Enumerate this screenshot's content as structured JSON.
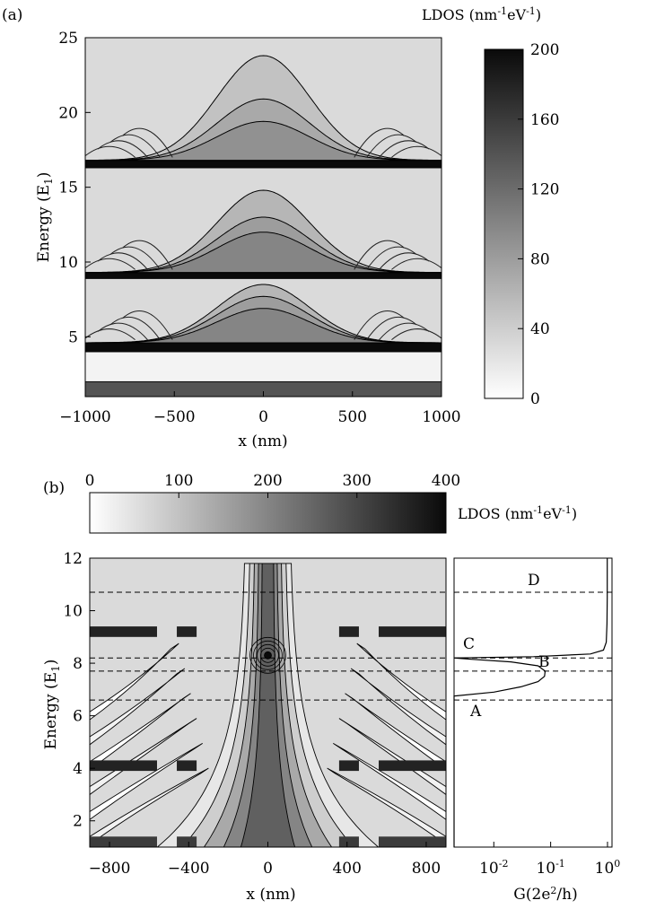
{
  "chart_data": [
    {
      "type": "heatmap",
      "panel_label": "(a)",
      "xlabel": "x (nm)",
      "ylabel": "Energy (E",
      "ylabel_sub": "1",
      "ylabel_end": ")",
      "x_ticks": [
        "−1000",
        "−500",
        "0",
        "500",
        "1000"
      ],
      "x_tick_values": [
        -1000,
        -500,
        0,
        500,
        1000
      ],
      "xlim": [
        -1000,
        1000
      ],
      "y_ticks": [
        "5",
        "10",
        "15",
        "20",
        "25"
      ],
      "y_tick_values": [
        5,
        10,
        15,
        20,
        25
      ],
      "ylim": [
        1,
        25
      ],
      "colorbar": {
        "title": "LDOS (nm",
        "title_sup1": "-1",
        "title_mid": "eV",
        "title_sup2": "-1",
        "title_end": ")",
        "ticks": [
          "0",
          "40",
          "80",
          "120",
          "160",
          "200"
        ],
        "tick_values": [
          0,
          40,
          80,
          120,
          160,
          200
        ],
        "range": [
          0,
          200
        ],
        "orientation": "vertical"
      },
      "bands": [
        {
          "e_min": 1.0,
          "e_max": 2.0,
          "level": 140
        },
        {
          "e_min": 2.0,
          "e_max": 4.0,
          "level": 10
        },
        {
          "e_min": 4.0,
          "e_max": 4.6,
          "level": 200
        },
        {
          "e_min": 4.6,
          "e_max": 8.9,
          "level": 30
        },
        {
          "e_min": 8.9,
          "e_max": 9.3,
          "level": 200
        },
        {
          "e_min": 9.3,
          "e_max": 16.3,
          "level": 30
        },
        {
          "e_min": 16.3,
          "e_max": 16.8,
          "level": 200
        },
        {
          "e_min": 16.8,
          "e_max": 25.0,
          "level": 30
        }
      ],
      "bumps": [
        {
          "e_base": 4.6,
          "contours": [
            {
              "e_peak": 8.5,
              "level": 60
            },
            {
              "e_peak": 7.7,
              "level": 80
            },
            {
              "e_peak": 6.9,
              "level": 100
            }
          ]
        },
        {
          "e_base": 9.3,
          "contours": [
            {
              "e_peak": 14.8,
              "level": 60
            },
            {
              "e_peak": 13.0,
              "level": 80
            },
            {
              "e_peak": 12.0,
              "level": 100
            }
          ]
        },
        {
          "e_base": 16.8,
          "contours": [
            {
              "e_peak": 23.8,
              "level": 50
            },
            {
              "e_peak": 20.9,
              "level": 70
            },
            {
              "e_peak": 19.4,
              "level": 90
            }
          ]
        }
      ]
    },
    {
      "type": "heatmap",
      "panel_label": "(b)",
      "xlabel": "x (nm)",
      "ylabel": "Energy (E",
      "ylabel_sub": "1",
      "ylabel_end": ")",
      "x_ticks": [
        "−800",
        "−400",
        "0",
        "400",
        "800"
      ],
      "x_tick_values": [
        -800,
        -400,
        0,
        400,
        800
      ],
      "xlim": [
        -900,
        900
      ],
      "y_ticks": [
        "2",
        "4",
        "6",
        "8",
        "10",
        "12"
      ],
      "y_tick_values": [
        2,
        4,
        6,
        8,
        10,
        12
      ],
      "ylim": [
        1,
        12
      ],
      "colorbar": {
        "title": "LDOS (nm",
        "title_sup1": "-1",
        "title_mid": "eV",
        "title_sup2": "-1",
        "title_end": ")",
        "ticks": [
          "0",
          "100",
          "200",
          "300",
          "400"
        ],
        "tick_values": [
          0,
          100,
          200,
          300,
          400
        ],
        "range": [
          0,
          400
        ],
        "orientation": "horizontal"
      },
      "dashed_lines_energy": [
        10.7,
        8.2,
        7.7,
        6.6
      ],
      "bands": [
        {
          "e_min": 1.0,
          "e_max": 1.4,
          "level": 320
        },
        {
          "e_min": 3.9,
          "e_max": 4.3,
          "level": 360
        },
        {
          "e_min": 9.0,
          "e_max": 9.4,
          "level": 360
        }
      ],
      "peak": {
        "x": 0,
        "e": 8.3,
        "level": 400
      }
    },
    {
      "type": "line",
      "xlabel": "G(2e",
      "xlabel_sup": "2",
      "xlabel_end": "/h)",
      "x_scale": "log",
      "xlim": [
        0.002,
        1.2
      ],
      "x_ticks": [
        {
          "base": "10",
          "exp": "-2",
          "value": 0.01
        },
        {
          "base": "10",
          "exp": "-1",
          "value": 0.1
        },
        {
          "base": "10",
          "exp": "0",
          "value": 1
        }
      ],
      "ylim": [
        1,
        12
      ],
      "points": [
        [
          1.0,
          0.002
        ],
        [
          6.75,
          0.002
        ],
        [
          6.9,
          0.01
        ],
        [
          7.1,
          0.03
        ],
        [
          7.3,
          0.06
        ],
        [
          7.5,
          0.078
        ],
        [
          7.7,
          0.08
        ],
        [
          7.9,
          0.06
        ],
        [
          8.05,
          0.02
        ],
        [
          8.15,
          0.004
        ],
        [
          8.2,
          0.002
        ],
        [
          8.25,
          0.05
        ],
        [
          8.35,
          0.5
        ],
        [
          8.5,
          0.85
        ],
        [
          8.8,
          0.95
        ],
        [
          9.5,
          0.98
        ],
        [
          10.5,
          0.99
        ],
        [
          12.0,
          0.99
        ]
      ],
      "annotations": [
        {
          "text": "A",
          "energy": 6.6
        },
        {
          "text": "B",
          "energy": 7.7
        },
        {
          "text": "C",
          "energy": 8.2
        },
        {
          "text": "D",
          "energy": 10.7
        }
      ]
    }
  ]
}
